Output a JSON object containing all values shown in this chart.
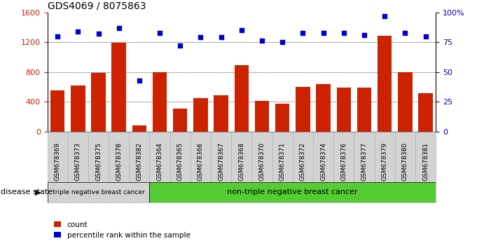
{
  "title": "GDS4069 / 8075863",
  "samples": [
    "GSM678369",
    "GSM678373",
    "GSM678375",
    "GSM678378",
    "GSM678382",
    "GSM678364",
    "GSM678365",
    "GSM678366",
    "GSM678367",
    "GSM678368",
    "GSM678370",
    "GSM678371",
    "GSM678372",
    "GSM678374",
    "GSM678376",
    "GSM678377",
    "GSM678379",
    "GSM678380",
    "GSM678381"
  ],
  "counts": [
    550,
    620,
    790,
    1190,
    80,
    800,
    310,
    450,
    490,
    890,
    410,
    370,
    600,
    640,
    590,
    590,
    1290,
    800,
    510
  ],
  "percentiles": [
    80,
    84,
    82,
    87,
    43,
    83,
    72,
    79,
    79,
    85,
    76,
    75,
    83,
    83,
    83,
    81,
    97,
    83,
    80
  ],
  "group1_label": "triple negative breast cancer",
  "group1_count": 5,
  "group2_label": "non-triple negative breast cancer",
  "disease_state_label": "disease state",
  "bar_color": "#cc2200",
  "dot_color": "#0000cc",
  "left_axis_color": "#cc2200",
  "right_axis_color": "#0000cc",
  "ylim_left": [
    0,
    1600
  ],
  "ylim_right": [
    0,
    100
  ],
  "yticks_left": [
    0,
    400,
    800,
    1200,
    1600
  ],
  "yticks_right": [
    0,
    25,
    50,
    75,
    100
  ],
  "ytick_labels_right": [
    "0",
    "25",
    "50",
    "75",
    "100%"
  ],
  "bg_color": "#ffffff",
  "tick_bg": "#d3d3d3",
  "group1_bg": "#d3d3d3",
  "group2_bg": "#55cc33"
}
